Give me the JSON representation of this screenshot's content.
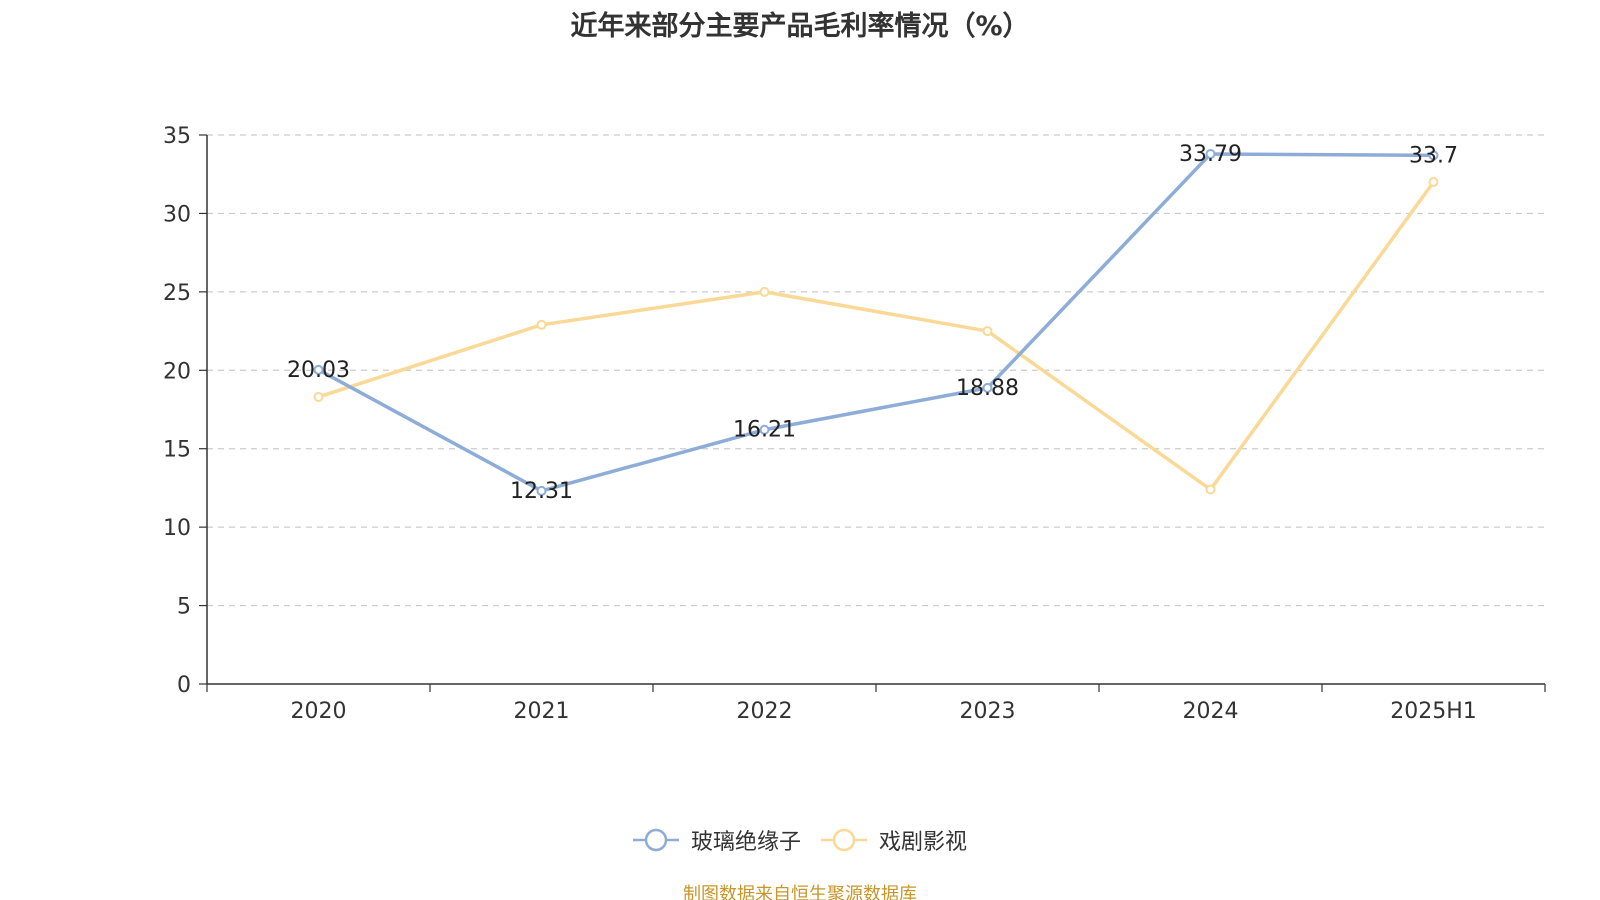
{
  "title": "近年来部分主要产品毛利率情况（%）",
  "source_note": "制图数据来自恒生聚源数据库",
  "colors": {
    "series_0": "#8eacd8",
    "series_1": "#f9d995",
    "grid": "#cccccc",
    "axis": "#333333",
    "source": "#c8962a"
  },
  "chart_data": {
    "type": "line",
    "title": "近年来部分主要产品毛利率情况（%）",
    "categories": [
      "2020",
      "2021",
      "2022",
      "2023",
      "2024",
      "2025H1"
    ],
    "ylim": [
      0,
      35
    ],
    "yticks": [
      0,
      5,
      10,
      15,
      20,
      25,
      30,
      35
    ],
    "grid": true,
    "legend_position": "bottom",
    "series": [
      {
        "name": "玻璃绝缘子",
        "values": [
          20.03,
          12.31,
          16.21,
          18.88,
          33.79,
          33.7
        ],
        "labels": [
          "20.03",
          "12.31",
          "16.21",
          "18.88",
          "33.79",
          "33.7"
        ]
      },
      {
        "name": "戏剧影视",
        "values": [
          18.3,
          22.9,
          25.0,
          22.5,
          12.4,
          32.0
        ]
      }
    ]
  }
}
